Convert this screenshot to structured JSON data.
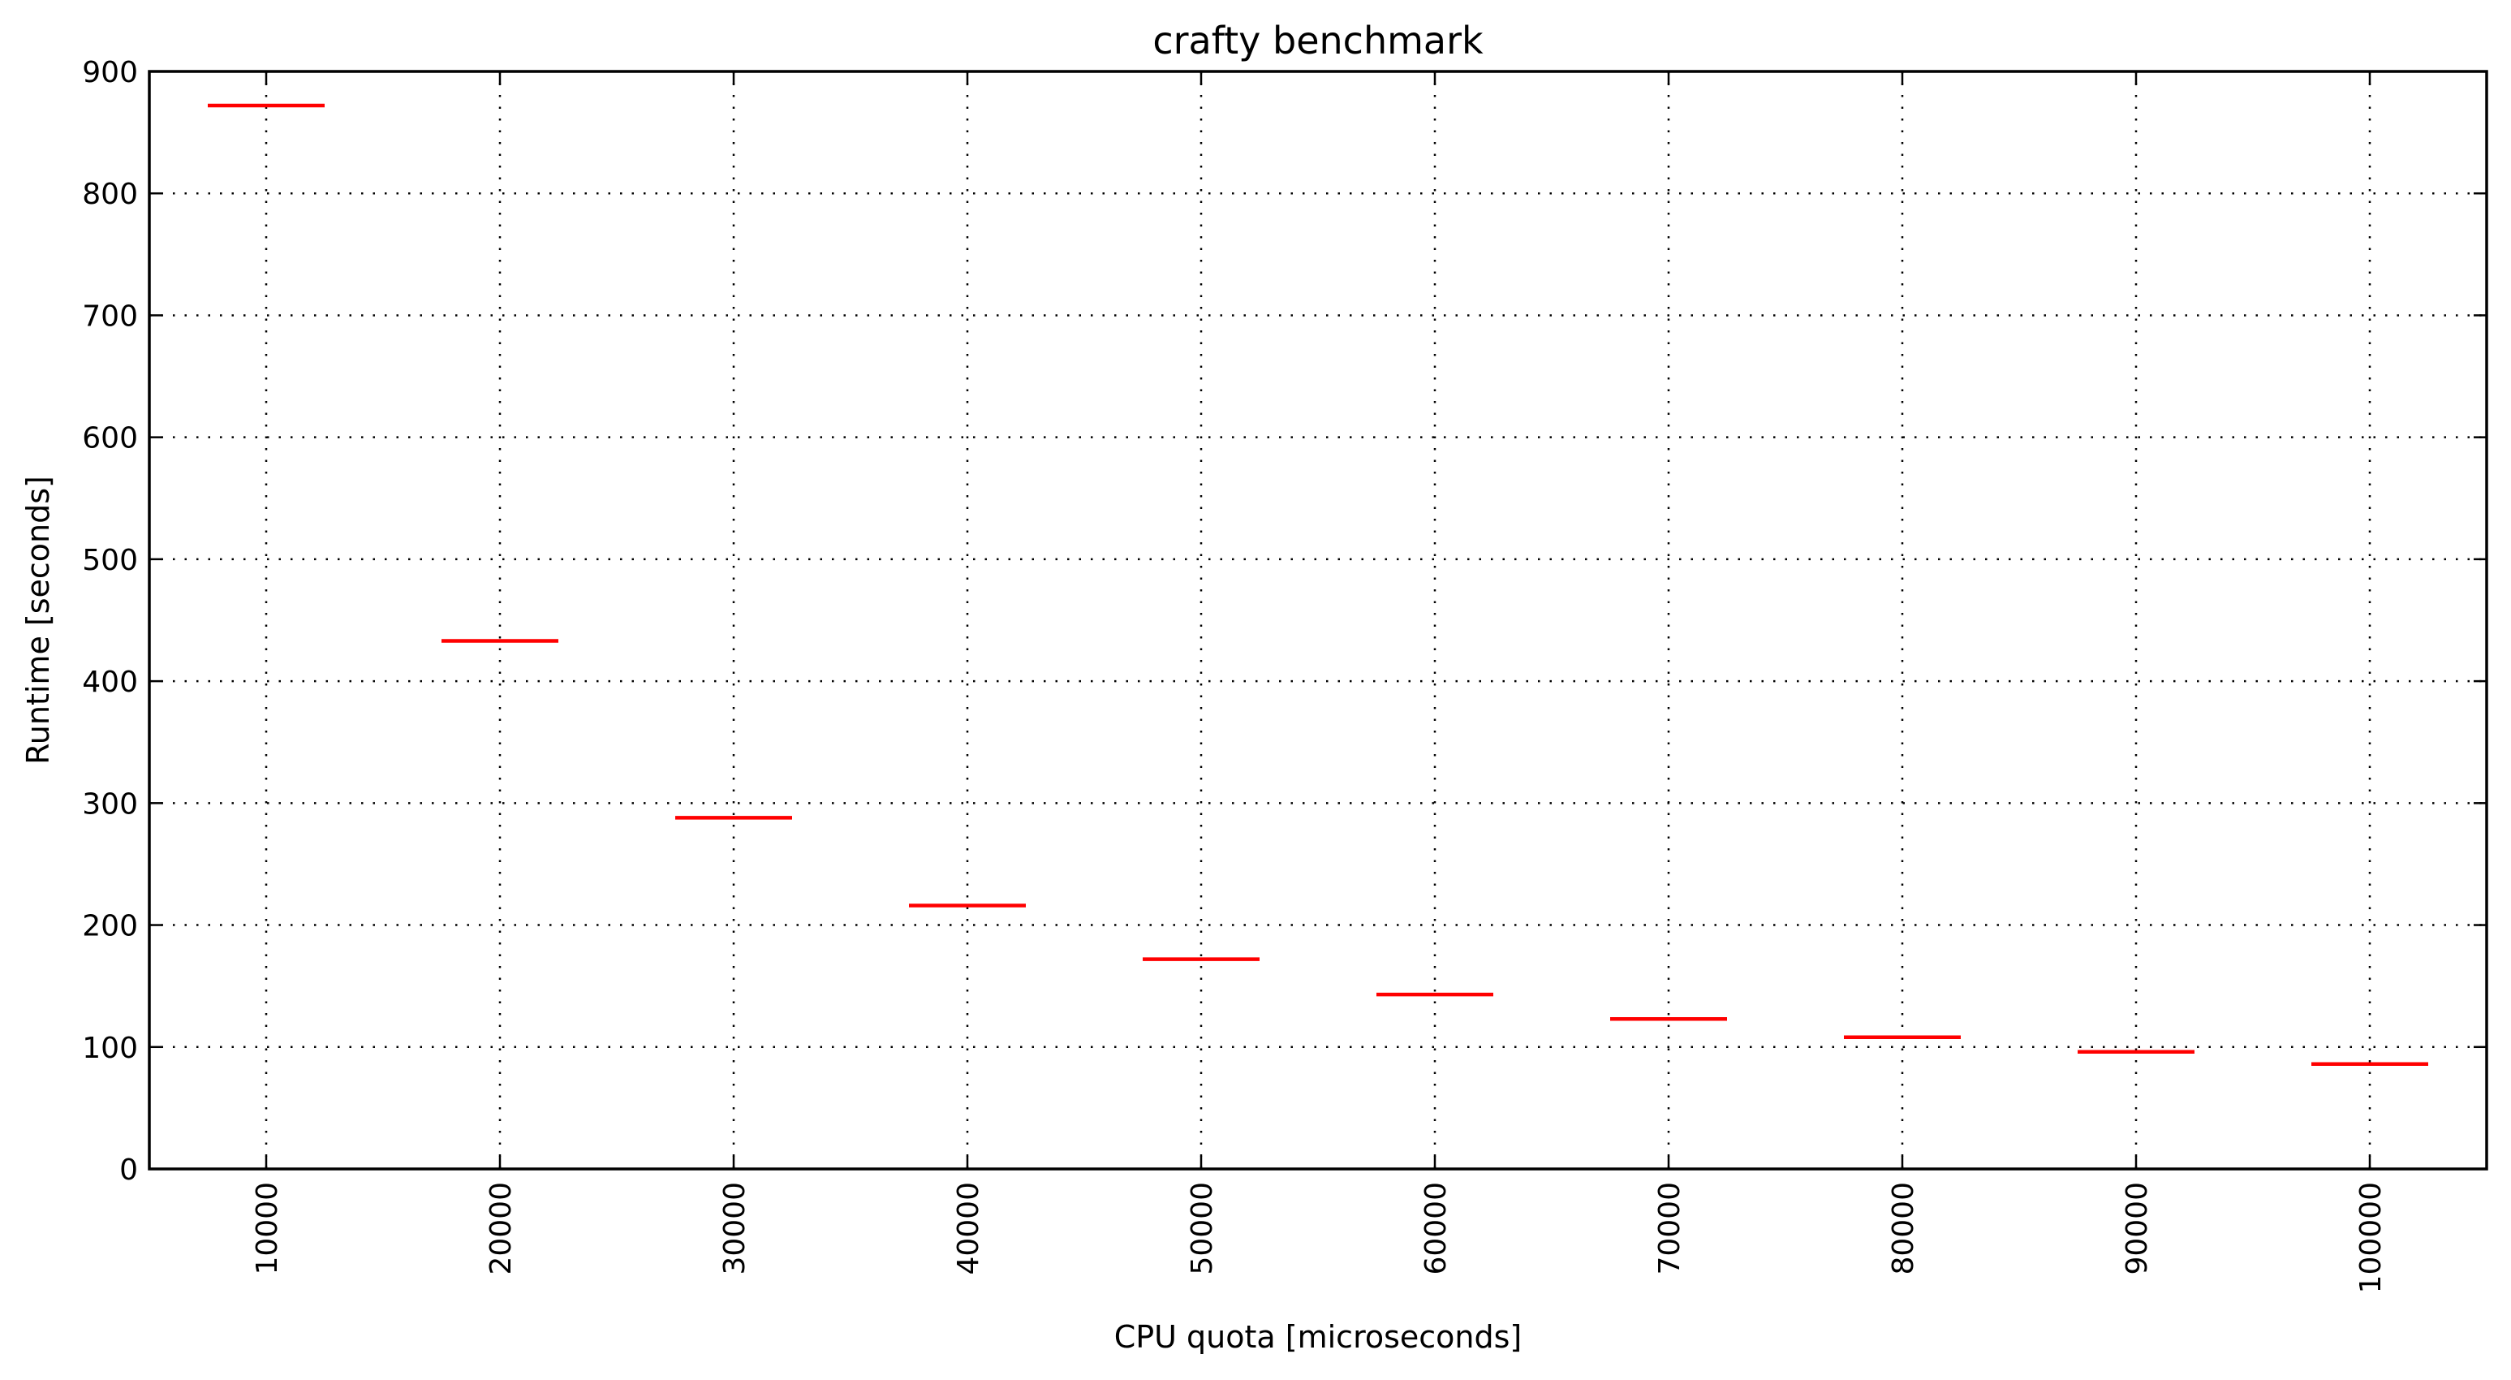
{
  "chart_data": {
    "type": "box",
    "title": "crafty benchmark",
    "xlabel": "CPU quota [microseconds]",
    "ylabel": "Runtime [seconds]",
    "categories": [
      "10000",
      "20000",
      "30000",
      "40000",
      "50000",
      "60000",
      "70000",
      "80000",
      "90000",
      "100000"
    ],
    "series": [
      {
        "values": [
          872,
          433,
          288,
          216,
          172,
          143,
          123,
          108,
          96,
          86
        ]
      }
    ],
    "yticks": [
      "0",
      "100",
      "200",
      "300",
      "400",
      "500",
      "600",
      "700",
      "800",
      "900"
    ],
    "ylim": [
      0,
      900
    ],
    "grid": true,
    "colors": {
      "median": "#ff0000",
      "axes": "#000000",
      "grid": "#000000",
      "background": "#ffffff"
    }
  }
}
